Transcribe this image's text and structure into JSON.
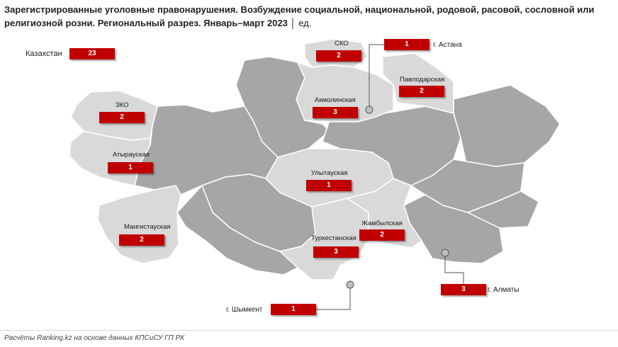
{
  "title": {
    "main": "Зарегистрированные уголовные правонарушения. Возбуждение социальной, национальной, родовой, расовой, сословной или религиозной розни. Региональный разрез. Январь–март 2023",
    "unit": "│ ед."
  },
  "total": {
    "label": "Казахстан",
    "value": "23"
  },
  "regions": {
    "sko": {
      "label": "СКО",
      "value": "2"
    },
    "zko": {
      "label": "ЗКО",
      "value": "2"
    },
    "akmola": {
      "label": "Акмолинская",
      "value": "3"
    },
    "pavlodar": {
      "label": "Павлодарская",
      "value": "2"
    },
    "atyrau": {
      "label": "Атырауская",
      "value": "1"
    },
    "ulytau": {
      "label": "Улытауская",
      "value": "1"
    },
    "mangystau": {
      "label": "Мангистауская",
      "value": "2"
    },
    "zhambyl": {
      "label": "Жамбылская",
      "value": "2"
    },
    "turkestan": {
      "label": "Туркестанская",
      "value": "3"
    }
  },
  "cities": {
    "astana": {
      "label": "г. Астана",
      "value": "1"
    },
    "almaty": {
      "label": "г. Алматы",
      "value": "3"
    },
    "shymkent": {
      "label": "г. Шымкент",
      "value": "1"
    }
  },
  "colors": {
    "highlight_region": "#d9d9d9",
    "other_region": "#a6a6a6",
    "border": "#ffffff",
    "badge": "#c00000"
  },
  "footer": "Расчёты Ranking.kz на основе данных КПСиСУ ГП РК"
}
